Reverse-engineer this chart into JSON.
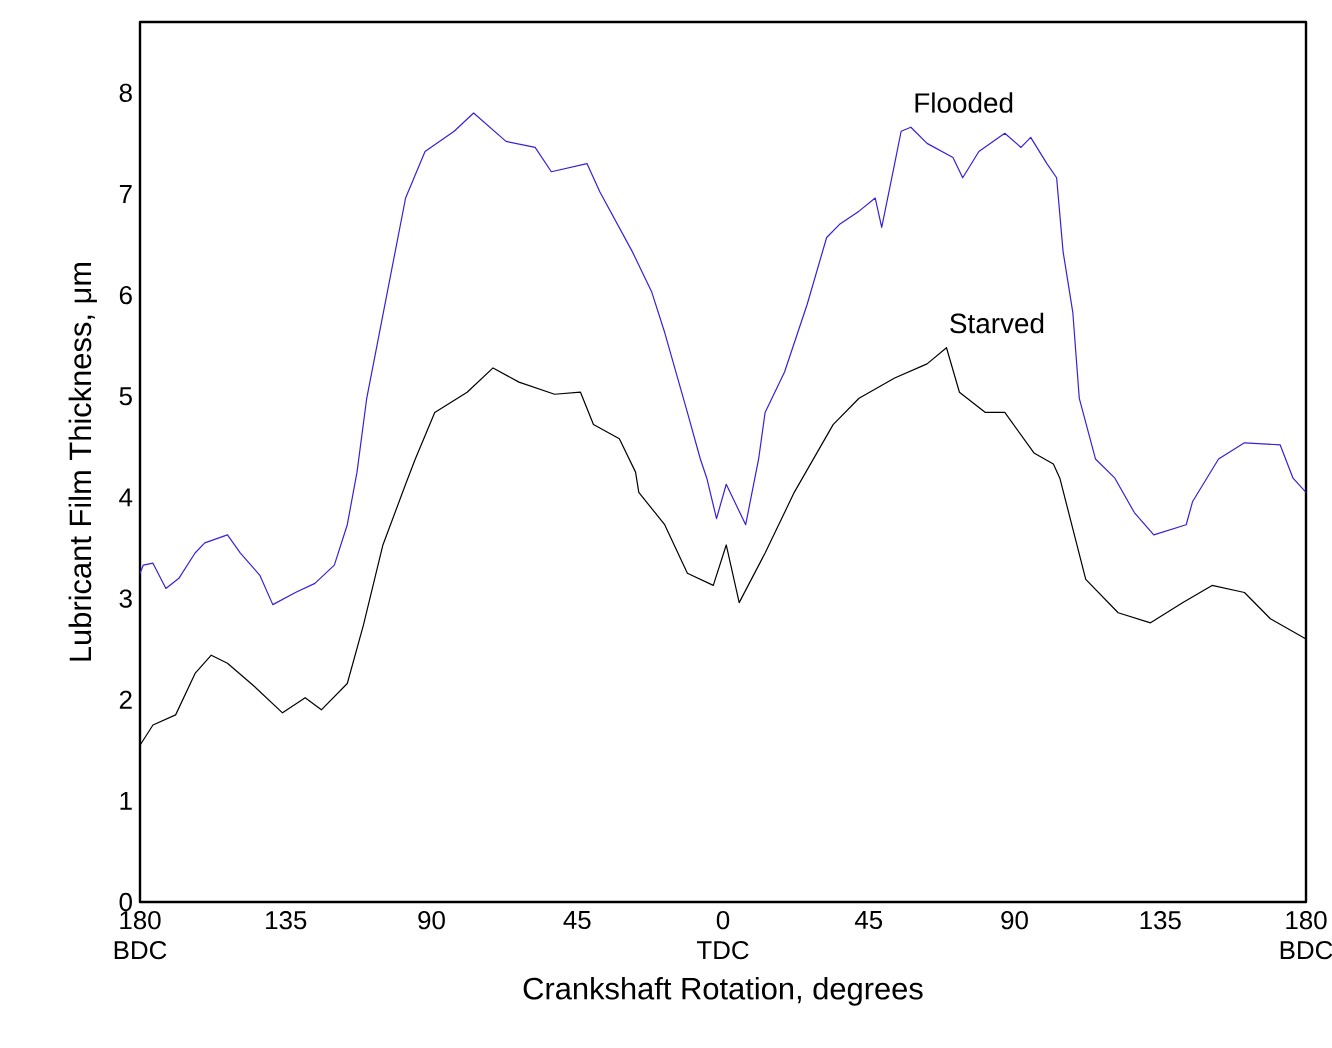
{
  "chart_data": {
    "type": "line",
    "xlabel": "Crankshaft Rotation, degrees",
    "ylabel": "Lubricant Film Thickness, μm",
    "xlim": [
      -180,
      180
    ],
    "ylim": [
      0,
      8.7
    ],
    "xticks": [
      {
        "value": -180,
        "label": "180 BDC"
      },
      {
        "value": -135,
        "label": "135"
      },
      {
        "value": -90,
        "label": "90"
      },
      {
        "value": -45,
        "label": "45"
      },
      {
        "value": 0,
        "label": "0 TDC"
      },
      45,
      90,
      135,
      {
        "value": 180,
        "label": "180 BDC"
      }
    ],
    "yticks": [
      0,
      1,
      2,
      3,
      4,
      5,
      6,
      7,
      8
    ],
    "grid": false,
    "legend": false,
    "marker": "none",
    "line_style": "solid",
    "series": [
      {
        "name": "Flooded",
        "color": "#3a1fd6",
        "x": [
          -180,
          -179,
          -176,
          -172,
          -168,
          -163,
          -160,
          -153,
          -149,
          -143,
          -139,
          -132,
          -126,
          -120,
          -116,
          -113,
          -110,
          -104,
          -98,
          -92,
          -83,
          -77,
          -67,
          -58,
          -53,
          -42,
          -38,
          -28,
          -22,
          -18,
          -11,
          -7,
          -5,
          -2,
          1,
          7,
          11,
          13,
          19,
          26,
          32,
          36,
          42,
          47,
          49,
          53,
          55,
          58,
          63,
          71,
          74,
          79,
          87,
          92,
          95,
          100,
          103,
          105,
          108,
          110,
          115,
          121,
          127,
          133,
          143,
          145,
          153,
          161,
          172,
          176,
          180
        ],
        "values": [
          3.25,
          3.33,
          3.35,
          3.1,
          3.2,
          3.45,
          3.55,
          3.63,
          3.45,
          3.23,
          2.94,
          3.06,
          3.15,
          3.33,
          3.73,
          4.25,
          4.98,
          5.97,
          6.96,
          7.42,
          7.62,
          7.8,
          7.52,
          7.46,
          7.22,
          7.3,
          7.02,
          6.43,
          6.03,
          5.63,
          4.84,
          4.38,
          4.19,
          3.79,
          4.13,
          3.73,
          4.38,
          4.84,
          5.24,
          5.91,
          6.57,
          6.7,
          6.83,
          6.96,
          6.67,
          7.3,
          7.62,
          7.66,
          7.5,
          7.36,
          7.16,
          7.42,
          7.6,
          7.46,
          7.56,
          7.3,
          7.16,
          6.43,
          5.83,
          4.98,
          4.38,
          4.19,
          3.85,
          3.63,
          3.73,
          3.96,
          4.38,
          4.54,
          4.52,
          4.19,
          4.05
        ]
      },
      {
        "name": "Starved",
        "color": "#000000",
        "x": [
          -180,
          -176,
          -169,
          -163,
          -158,
          -153,
          -145,
          -136,
          -129,
          -124,
          -116,
          -111,
          -105,
          -98,
          -95,
          -89,
          -79,
          -71,
          -63,
          -52,
          -44,
          -40,
          -32,
          -27,
          -26,
          -18,
          -11,
          -3,
          1,
          5,
          13,
          22,
          34,
          42,
          53,
          63,
          69,
          73,
          81,
          87,
          96,
          102,
          104,
          112,
          122,
          132,
          142,
          151,
          161,
          169,
          180
        ],
        "values": [
          1.55,
          1.75,
          1.85,
          2.26,
          2.44,
          2.36,
          2.14,
          1.87,
          2.02,
          1.9,
          2.16,
          2.74,
          3.53,
          4.13,
          4.38,
          4.84,
          5.04,
          5.28,
          5.14,
          5.02,
          5.04,
          4.72,
          4.58,
          4.25,
          4.05,
          3.73,
          3.25,
          3.13,
          3.53,
          2.96,
          3.45,
          4.05,
          4.72,
          4.98,
          5.18,
          5.32,
          5.48,
          5.04,
          4.84,
          4.84,
          4.44,
          4.33,
          4.19,
          3.19,
          2.86,
          2.76,
          2.96,
          3.13,
          3.06,
          2.8,
          2.6
        ]
      }
    ]
  }
}
